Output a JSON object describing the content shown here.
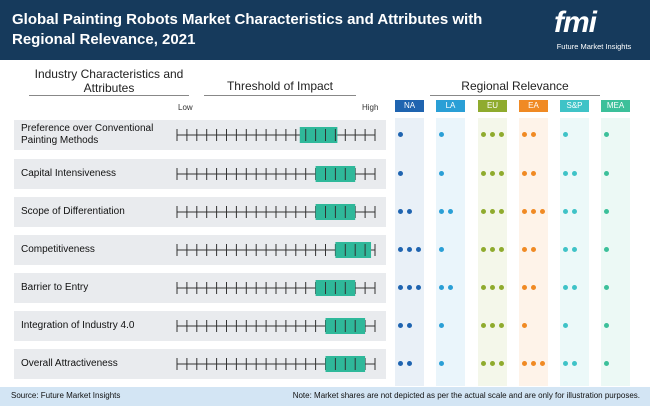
{
  "header": {
    "title": "Global Painting Robots Market Characteristics and Attributes with Regional Relevance, 2021",
    "logo_letters": "fmi",
    "logo_text": "Future Market Insights"
  },
  "columns": {
    "characteristics": "Industry Characteristics and Attributes",
    "threshold": "Threshold of Impact",
    "regional": "Regional Relevance",
    "low": "Low",
    "high": "High"
  },
  "colors": {
    "header_bg": "#163a5c",
    "bar": "#2fb89a",
    "NA": "#1f64b0",
    "LA": "#2a9fd6",
    "EU": "#8fab2e",
    "EA": "#f08a24",
    "S&P": "#3fc3c7",
    "MEA": "#3cc09a"
  },
  "footer": {
    "source": "Source: Future Market Insights",
    "note": "Note: Market shares are not depicted as per the actual scale and are only for illustration purposes."
  },
  "chart_data": {
    "type": "table",
    "scale": {
      "min": 0,
      "max": 1,
      "low_label": "Low",
      "high_label": "High",
      "ticks": 21
    },
    "regions": [
      "NA",
      "LA",
      "EU",
      "EA",
      "S&P",
      "MEA"
    ],
    "rows": [
      {
        "label": "Preference over Conventional Painting Methods",
        "impact": [
          0.62,
          0.81
        ],
        "relevance": [
          1,
          1,
          3,
          2,
          1,
          1
        ]
      },
      {
        "label": "Capital Intensiveness",
        "impact": [
          0.7,
          0.9
        ],
        "relevance": [
          1,
          1,
          3,
          2,
          2,
          1
        ]
      },
      {
        "label": "Scope of Differentiation",
        "impact": [
          0.7,
          0.9
        ],
        "relevance": [
          2,
          2,
          3,
          3,
          2,
          1
        ]
      },
      {
        "label": "Competitiveness",
        "impact": [
          0.8,
          0.98
        ],
        "relevance": [
          3,
          1,
          3,
          2,
          2,
          1
        ]
      },
      {
        "label": "Barrier to Entry",
        "impact": [
          0.7,
          0.9
        ],
        "relevance": [
          3,
          2,
          3,
          2,
          2,
          1
        ]
      },
      {
        "label": "Integration of Industry 4.0",
        "impact": [
          0.75,
          0.95
        ],
        "relevance": [
          2,
          1,
          3,
          1,
          1,
          1
        ]
      },
      {
        "label": "Overall Attractiveness",
        "impact": [
          0.75,
          0.95
        ],
        "relevance": [
          2,
          1,
          3,
          3,
          2,
          1
        ]
      }
    ]
  }
}
